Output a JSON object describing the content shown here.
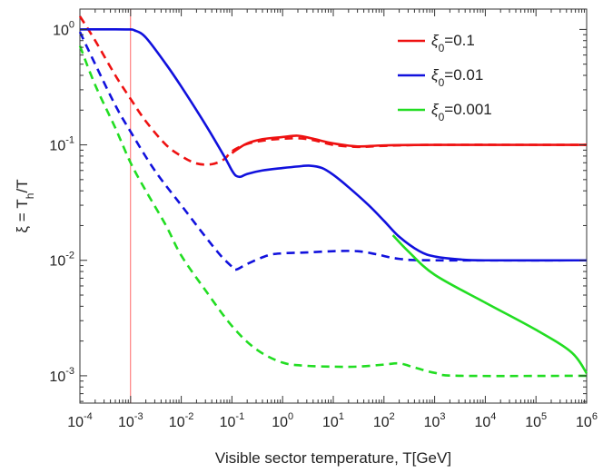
{
  "chart_data": {
    "type": "line",
    "xlabel": "Visible sector temperature, T[GeV]",
    "ylabel": "ξ = T_h/T",
    "x_scale": "log",
    "y_scale": "log",
    "xlim": [
      0.0001,
      1000000
    ],
    "ylim": [
      0.00058,
      1.5
    ],
    "x_ticks": [
      {
        "base": "10",
        "exp": "-4"
      },
      {
        "base": "10",
        "exp": "-3"
      },
      {
        "base": "10",
        "exp": "-2"
      },
      {
        "base": "10",
        "exp": "-1"
      },
      {
        "base": "10",
        "exp": "0"
      },
      {
        "base": "10",
        "exp": "1"
      },
      {
        "base": "10",
        "exp": "2"
      },
      {
        "base": "10",
        "exp": "3"
      },
      {
        "base": "10",
        "exp": "4"
      },
      {
        "base": "10",
        "exp": "5"
      },
      {
        "base": "10",
        "exp": "6"
      }
    ],
    "y_ticks": [
      {
        "base": "10",
        "exp": "0",
        "value": 1
      },
      {
        "base": "10",
        "exp": "-1",
        "value": 0.1
      },
      {
        "base": "10",
        "exp": "-2",
        "value": 0.01
      },
      {
        "base": "10",
        "exp": "-3",
        "value": 0.001
      }
    ],
    "vertical_line": {
      "x": 0.001,
      "color": "#ff4444"
    },
    "legend": {
      "position": "top-right",
      "entries": [
        {
          "sym": "ξ",
          "sub": "0",
          "rest": "=0.1",
          "color": "#ee1111"
        },
        {
          "sym": "ξ",
          "sub": "0",
          "rest": "=0.01",
          "color": "#1111dd"
        },
        {
          "sym": "ξ",
          "sub": "0",
          "rest": "=0.001",
          "color": "#22dd22"
        }
      ]
    },
    "series": [
      {
        "legend": "ξ0=0.1",
        "style": "solid",
        "color": "#ee1111",
        "points": [
          [
            0.1,
            0.085
          ],
          [
            0.13,
            0.092
          ],
          [
            0.2,
            0.103
          ],
          [
            0.4,
            0.112
          ],
          [
            1,
            0.117
          ],
          [
            2,
            0.12
          ],
          [
            4,
            0.113
          ],
          [
            10,
            0.103
          ],
          [
            30,
            0.097
          ],
          [
            100,
            0.099
          ],
          [
            1000,
            0.1
          ],
          [
            1000000,
            0.1
          ]
        ]
      },
      {
        "legend": "ξ0=0.1",
        "style": "dashed",
        "color": "#ee1111",
        "points": [
          [
            0.0001,
            1.3
          ],
          [
            0.0002,
            0.8
          ],
          [
            0.0005,
            0.4
          ],
          [
            0.001,
            0.25
          ],
          [
            0.002,
            0.16
          ],
          [
            0.005,
            0.1
          ],
          [
            0.01,
            0.08
          ],
          [
            0.02,
            0.069
          ],
          [
            0.04,
            0.068
          ],
          [
            0.07,
            0.075
          ],
          [
            0.1,
            0.088
          ],
          [
            0.2,
            0.102
          ],
          [
            0.5,
            0.11
          ],
          [
            1,
            0.113
          ],
          [
            2,
            0.114
          ],
          [
            4,
            0.11
          ],
          [
            10,
            0.1
          ],
          [
            30,
            0.096
          ],
          [
            100,
            0.098
          ],
          [
            1000,
            0.1
          ],
          [
            1000000,
            0.1
          ]
        ]
      },
      {
        "legend": "ξ0=0.01",
        "style": "solid",
        "color": "#1111dd",
        "points": [
          [
            0.0001,
            1
          ],
          [
            0.0008,
            1
          ],
          [
            0.0012,
            0.98
          ],
          [
            0.002,
            0.85
          ],
          [
            0.005,
            0.5
          ],
          [
            0.01,
            0.32
          ],
          [
            0.03,
            0.15
          ],
          [
            0.07,
            0.08
          ],
          [
            0.1,
            0.06
          ],
          [
            0.12,
            0.054
          ],
          [
            0.15,
            0.053
          ],
          [
            0.2,
            0.056
          ],
          [
            0.4,
            0.06
          ],
          [
            1,
            0.063
          ],
          [
            2,
            0.065
          ],
          [
            3.5,
            0.066
          ],
          [
            6,
            0.063
          ],
          [
            10,
            0.055
          ],
          [
            20,
            0.043
          ],
          [
            50,
            0.03
          ],
          [
            100,
            0.022
          ],
          [
            200,
            0.016
          ],
          [
            500,
            0.012
          ],
          [
            1000,
            0.0108
          ],
          [
            3000,
            0.0102
          ],
          [
            10000,
            0.01
          ],
          [
            1000000,
            0.01
          ]
        ]
      },
      {
        "legend": "ξ0=0.01",
        "style": "dashed",
        "color": "#1111dd",
        "points": [
          [
            0.0001,
            0.95
          ],
          [
            0.0002,
            0.5
          ],
          [
            0.0005,
            0.22
          ],
          [
            0.001,
            0.13
          ],
          [
            0.003,
            0.06
          ],
          [
            0.01,
            0.03
          ],
          [
            0.03,
            0.016
          ],
          [
            0.06,
            0.011
          ],
          [
            0.1,
            0.0088
          ],
          [
            0.12,
            0.0083
          ],
          [
            0.2,
            0.0093
          ],
          [
            0.5,
            0.011
          ],
          [
            1,
            0.0115
          ],
          [
            3,
            0.0117
          ],
          [
            10,
            0.012
          ],
          [
            30,
            0.012
          ],
          [
            70,
            0.0113
          ],
          [
            200,
            0.0103
          ],
          [
            1000,
            0.01
          ],
          [
            1000000,
            0.01
          ]
        ]
      },
      {
        "legend": "ξ0=0.001",
        "style": "solid",
        "color": "#22dd22",
        "points": [
          [
            150,
            0.0165
          ],
          [
            300,
            0.012
          ],
          [
            1000,
            0.0075
          ],
          [
            10000,
            0.0043
          ],
          [
            100000,
            0.0025
          ],
          [
            500000,
            0.0016
          ],
          [
            1000000,
            0.00105
          ]
        ]
      },
      {
        "legend": "ξ0=0.001",
        "style": "dashed",
        "color": "#22dd22",
        "points": [
          [
            0.0001,
            0.72
          ],
          [
            0.0002,
            0.33
          ],
          [
            0.0005,
            0.14
          ],
          [
            0.001,
            0.07
          ],
          [
            0.002,
            0.04
          ],
          [
            0.005,
            0.02
          ],
          [
            0.01,
            0.011
          ],
          [
            0.03,
            0.0055
          ],
          [
            0.1,
            0.0027
          ],
          [
            0.3,
            0.0017
          ],
          [
            1,
            0.0013
          ],
          [
            3,
            0.00122
          ],
          [
            10,
            0.0012
          ],
          [
            30,
            0.0012
          ],
          [
            100,
            0.00125
          ],
          [
            200,
            0.00128
          ],
          [
            400,
            0.00118
          ],
          [
            1000,
            0.00106
          ],
          [
            3000,
            0.001
          ],
          [
            1000000,
            0.001
          ]
        ]
      }
    ]
  }
}
